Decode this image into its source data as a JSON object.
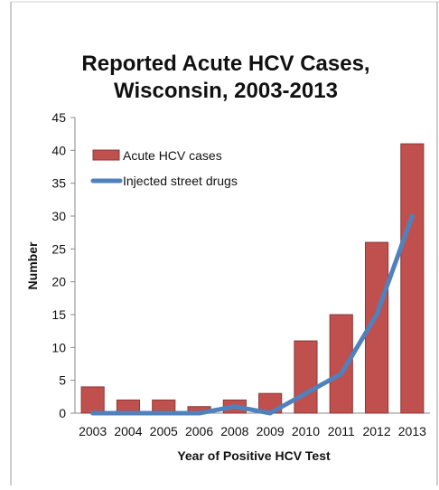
{
  "chart_data": {
    "type": "bar",
    "title_line1": "Reported Acute HCV Cases,",
    "title_line2": "Wisconsin, 2003-2013",
    "xlabel": "Year of Positive HCV Test",
    "ylabel": "Number",
    "ylim": [
      0,
      45
    ],
    "yticks": [
      "0",
      "5",
      "10",
      "15",
      "20",
      "25",
      "30",
      "35",
      "40",
      "45"
    ],
    "categories": [
      "2003",
      "2004",
      "2005",
      "2006",
      "2008",
      "2009",
      "2010",
      "2011",
      "2012",
      "2013"
    ],
    "grid": false,
    "legend_position": "top-left",
    "series": [
      {
        "name": "Acute HCV cases",
        "kind": "bar",
        "color": "#C0504D",
        "values": [
          4,
          2,
          2,
          1,
          2,
          3,
          11,
          15,
          26,
          41
        ]
      },
      {
        "name": "Injected street drugs",
        "kind": "line",
        "color": "#4F81BD",
        "values": [
          0,
          0,
          0,
          0,
          1,
          0,
          3,
          6,
          15,
          30
        ]
      }
    ]
  }
}
